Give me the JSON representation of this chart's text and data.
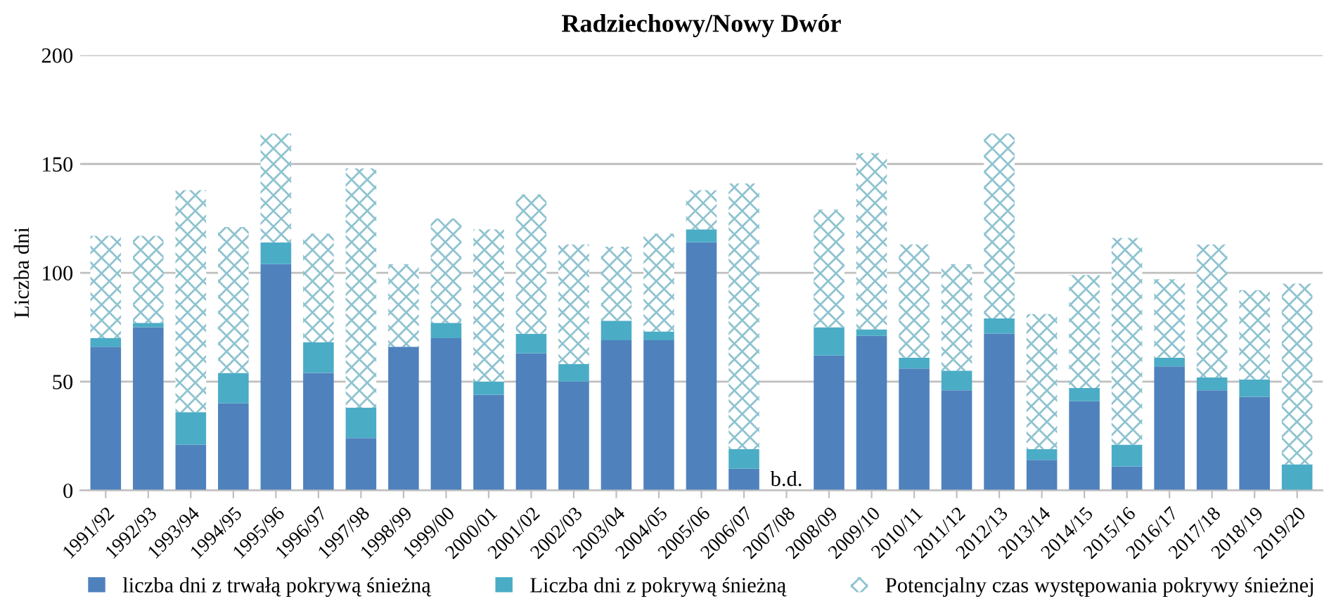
{
  "chart_data": {
    "type": "bar",
    "stacked": true,
    "title": "Radziechowy/Nowy Dwór",
    "ylabel": "Liczba dni",
    "categories": [
      "1991/92",
      "1992/93",
      "1993/94",
      "1994/95",
      "1995/96",
      "1996/97",
      "1997/98",
      "1998/99",
      "1999/00",
      "2000/01",
      "2001/02",
      "2002/03",
      "2003/04",
      "2004/05",
      "2005/06",
      "2006/07",
      "2007/08",
      "2008/09",
      "2009/10",
      "2010/11",
      "2011/12",
      "2012/13",
      "2013/14",
      "2014/15",
      "2015/16",
      "2016/17",
      "2017/18",
      "2018/19",
      "2019/20"
    ],
    "series": [
      {
        "name": "liczba dni z trwałą pokrywą śnieżną",
        "color": "#4f81bd",
        "values": [
          66,
          75,
          21,
          40,
          104,
          54,
          24,
          66,
          70,
          44,
          63,
          50,
          69,
          69,
          114,
          10,
          null,
          62,
          71,
          56,
          46,
          72,
          14,
          41,
          11,
          57,
          46,
          43,
          0
        ]
      },
      {
        "name": "Liczba dni z pokrywą śnieżną",
        "color": "#4bacc6",
        "values": [
          4,
          2,
          15,
          14,
          10,
          14,
          14,
          0,
          7,
          6,
          9,
          8,
          9,
          4,
          6,
          9,
          null,
          13,
          3,
          5,
          9,
          7,
          5,
          6,
          10,
          4,
          6,
          8,
          12
        ]
      },
      {
        "name": "Potencjalny czas występowania pokrywy śnieżnej",
        "color": "#8fc3d0",
        "values": [
          47,
          40,
          102,
          67,
          50,
          50,
          110,
          38,
          48,
          70,
          64,
          55,
          34,
          45,
          18,
          122,
          null,
          54,
          81,
          52,
          49,
          85,
          62,
          52,
          95,
          36,
          61,
          41,
          83
        ]
      }
    ],
    "ylim": [
      0,
      200
    ],
    "yticks": [
      0,
      50,
      100,
      150,
      200
    ],
    "grid": "y",
    "legend": "bottom",
    "annotations": [
      "b.d."
    ]
  }
}
